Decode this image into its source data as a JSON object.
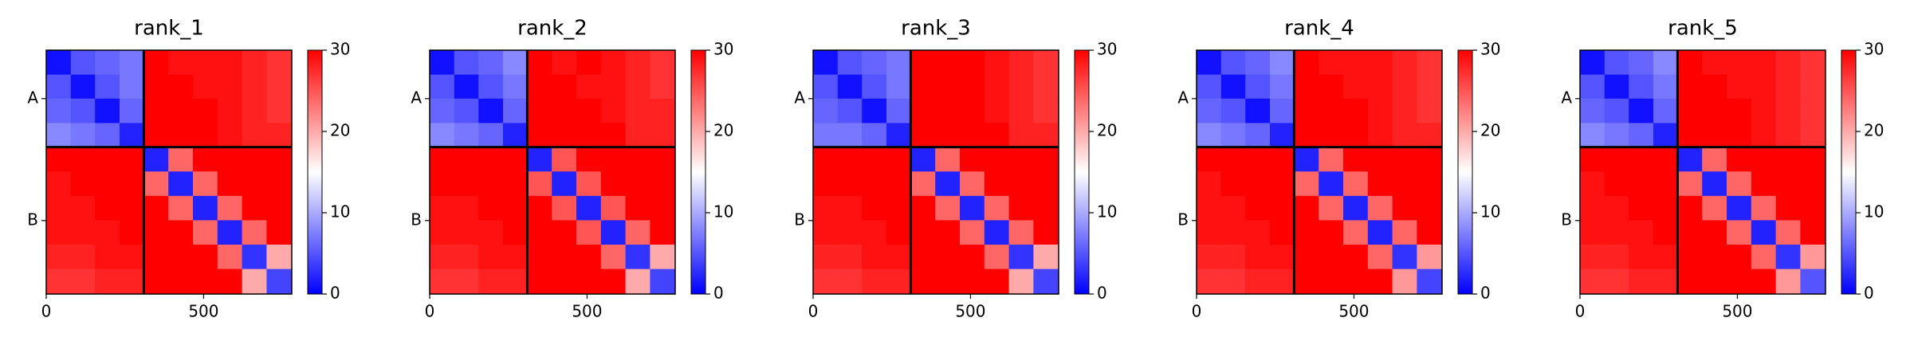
{
  "chart_data": [
    {
      "type": "heatmap",
      "title": "rank_1",
      "colormap": "bwr",
      "bins": [
        0,
        78,
        155,
        233,
        310,
        388,
        466,
        544,
        622,
        700,
        780
      ],
      "values": [
        [
          1,
          5,
          6,
          7,
          30,
          29,
          29,
          29,
          28,
          27
        ],
        [
          5,
          1,
          5,
          7,
          30,
          30,
          29,
          29,
          28,
          27
        ],
        [
          6,
          5,
          1,
          6,
          30,
          30,
          30,
          29,
          28,
          27
        ],
        [
          8,
          7,
          6,
          2,
          30,
          30,
          30,
          29,
          28,
          28
        ],
        [
          30,
          30,
          30,
          30,
          2,
          24,
          30,
          30,
          30,
          30
        ],
        [
          29,
          30,
          30,
          30,
          24,
          2,
          24,
          30,
          30,
          30
        ],
        [
          29,
          29,
          30,
          30,
          30,
          24,
          2,
          24,
          30,
          30
        ],
        [
          29,
          29,
          29,
          30,
          30,
          30,
          24,
          2,
          24,
          30
        ],
        [
          28,
          28,
          29,
          29,
          30,
          30,
          30,
          24,
          3,
          20
        ],
        [
          27,
          27,
          28,
          28,
          30,
          30,
          30,
          30,
          20,
          4
        ]
      ],
      "xlim": [
        0,
        780
      ],
      "ylim": [
        780,
        0
      ],
      "xticks": [
        0,
        500
      ],
      "yticks": [
        {
          "value": 155,
          "label": "A"
        },
        {
          "value": 545,
          "label": "B"
        }
      ],
      "clim": [
        0,
        30
      ],
      "cticks": [
        0,
        10,
        20,
        30
      ],
      "boundaries": [
        310
      ]
    },
    {
      "type": "heatmap",
      "title": "rank_2",
      "colormap": "bwr",
      "bins": [
        0,
        78,
        155,
        233,
        310,
        388,
        466,
        544,
        622,
        700,
        780
      ],
      "values": [
        [
          1,
          5,
          6,
          8,
          30,
          29,
          30,
          29,
          28,
          27
        ],
        [
          5,
          1,
          5,
          7,
          30,
          30,
          29,
          29,
          28,
          27
        ],
        [
          6,
          5,
          1,
          6,
          30,
          30,
          30,
          29,
          28,
          28
        ],
        [
          8,
          7,
          6,
          2,
          30,
          30,
          30,
          30,
          28,
          28
        ],
        [
          30,
          30,
          30,
          30,
          2,
          25,
          30,
          30,
          30,
          30
        ],
        [
          30,
          30,
          30,
          30,
          25,
          2,
          25,
          30,
          30,
          30
        ],
        [
          29,
          29,
          30,
          30,
          30,
          25,
          2,
          25,
          30,
          30
        ],
        [
          29,
          29,
          29,
          30,
          30,
          30,
          25,
          2,
          24,
          30
        ],
        [
          28,
          28,
          29,
          29,
          30,
          30,
          30,
          24,
          3,
          20
        ],
        [
          27,
          27,
          28,
          28,
          30,
          30,
          30,
          30,
          20,
          4
        ]
      ],
      "xlim": [
        0,
        780
      ],
      "ylim": [
        780,
        0
      ],
      "xticks": [
        0,
        500
      ],
      "yticks": [
        {
          "value": 155,
          "label": "A"
        },
        {
          "value": 545,
          "label": "B"
        }
      ],
      "clim": [
        0,
        30
      ],
      "cticks": [
        0,
        10,
        20,
        30
      ],
      "boundaries": [
        310
      ]
    },
    {
      "type": "heatmap",
      "title": "rank_3",
      "colormap": "bwr",
      "bins": [
        0,
        78,
        155,
        233,
        310,
        388,
        466,
        544,
        622,
        700,
        780
      ],
      "values": [
        [
          1,
          5,
          6,
          7,
          30,
          30,
          30,
          29,
          28,
          27
        ],
        [
          5,
          1,
          5,
          7,
          30,
          30,
          30,
          29,
          28,
          27
        ],
        [
          6,
          5,
          1,
          6,
          30,
          30,
          30,
          29,
          28,
          27
        ],
        [
          7,
          7,
          6,
          2,
          30,
          30,
          30,
          30,
          28,
          28
        ],
        [
          30,
          30,
          30,
          30,
          2,
          24,
          30,
          30,
          30,
          30
        ],
        [
          30,
          30,
          30,
          30,
          24,
          2,
          24,
          30,
          30,
          30
        ],
        [
          29,
          29,
          30,
          30,
          30,
          24,
          2,
          24,
          30,
          30
        ],
        [
          29,
          29,
          29,
          30,
          30,
          30,
          24,
          2,
          24,
          30
        ],
        [
          28,
          28,
          29,
          29,
          30,
          30,
          30,
          24,
          3,
          20
        ],
        [
          27,
          27,
          28,
          28,
          30,
          30,
          30,
          30,
          20,
          4
        ]
      ],
      "xlim": [
        0,
        780
      ],
      "ylim": [
        780,
        0
      ],
      "xticks": [
        0,
        500
      ],
      "yticks": [
        {
          "value": 155,
          "label": "A"
        },
        {
          "value": 545,
          "label": "B"
        }
      ],
      "clim": [
        0,
        30
      ],
      "cticks": [
        0,
        10,
        20,
        30
      ],
      "boundaries": [
        310
      ]
    },
    {
      "type": "heatmap",
      "title": "rank_4",
      "colormap": "bwr",
      "bins": [
        0,
        78,
        155,
        233,
        310,
        388,
        466,
        544,
        622,
        700,
        780
      ],
      "values": [
        [
          1,
          5,
          6,
          8,
          30,
          29,
          29,
          29,
          28,
          27
        ],
        [
          5,
          1,
          5,
          7,
          30,
          30,
          29,
          29,
          28,
          27
        ],
        [
          6,
          5,
          1,
          6,
          30,
          30,
          30,
          29,
          28,
          27
        ],
        [
          8,
          7,
          6,
          2,
          30,
          30,
          30,
          29,
          28,
          28
        ],
        [
          30,
          30,
          30,
          30,
          2,
          24,
          30,
          30,
          30,
          30
        ],
        [
          29,
          30,
          30,
          30,
          24,
          2,
          24,
          30,
          30,
          30
        ],
        [
          29,
          29,
          30,
          30,
          30,
          24,
          2,
          24,
          30,
          30
        ],
        [
          29,
          29,
          29,
          30,
          30,
          30,
          24,
          2,
          24,
          30
        ],
        [
          28,
          28,
          29,
          29,
          30,
          30,
          30,
          24,
          3,
          21
        ],
        [
          27,
          27,
          28,
          28,
          30,
          30,
          30,
          30,
          21,
          4
        ]
      ],
      "xlim": [
        0,
        780
      ],
      "ylim": [
        780,
        0
      ],
      "xticks": [
        0,
        500
      ],
      "yticks": [
        {
          "value": 155,
          "label": "A"
        },
        {
          "value": 545,
          "label": "B"
        }
      ],
      "clim": [
        0,
        30
      ],
      "cticks": [
        0,
        10,
        20,
        30
      ],
      "boundaries": [
        310
      ]
    },
    {
      "type": "heatmap",
      "title": "rank_5",
      "colormap": "bwr",
      "bins": [
        0,
        78,
        155,
        233,
        310,
        388,
        466,
        544,
        622,
        700,
        780
      ],
      "values": [
        [
          1,
          5,
          6,
          8,
          30,
          29,
          29,
          29,
          28,
          27
        ],
        [
          5,
          1,
          5,
          7,
          30,
          30,
          29,
          29,
          28,
          27
        ],
        [
          6,
          5,
          1,
          6,
          30,
          30,
          30,
          29,
          28,
          27
        ],
        [
          8,
          7,
          6,
          2,
          30,
          30,
          30,
          29,
          28,
          27
        ],
        [
          30,
          30,
          30,
          30,
          2,
          24,
          30,
          30,
          30,
          30
        ],
        [
          29,
          30,
          30,
          30,
          24,
          2,
          24,
          30,
          30,
          30
        ],
        [
          29,
          29,
          30,
          30,
          30,
          24,
          2,
          24,
          30,
          30
        ],
        [
          29,
          29,
          29,
          30,
          30,
          30,
          24,
          2,
          24,
          30
        ],
        [
          28,
          28,
          29,
          29,
          30,
          30,
          30,
          24,
          3,
          21
        ],
        [
          27,
          27,
          28,
          28,
          30,
          30,
          30,
          30,
          21,
          5
        ]
      ],
      "xlim": [
        0,
        780
      ],
      "ylim": [
        780,
        0
      ],
      "xticks": [
        0,
        500
      ],
      "yticks": [
        {
          "value": 155,
          "label": "A"
        },
        {
          "value": 545,
          "label": "B"
        }
      ],
      "clim": [
        0,
        30
      ],
      "cticks": [
        0,
        10,
        20,
        30
      ],
      "boundaries": [
        310
      ]
    }
  ]
}
